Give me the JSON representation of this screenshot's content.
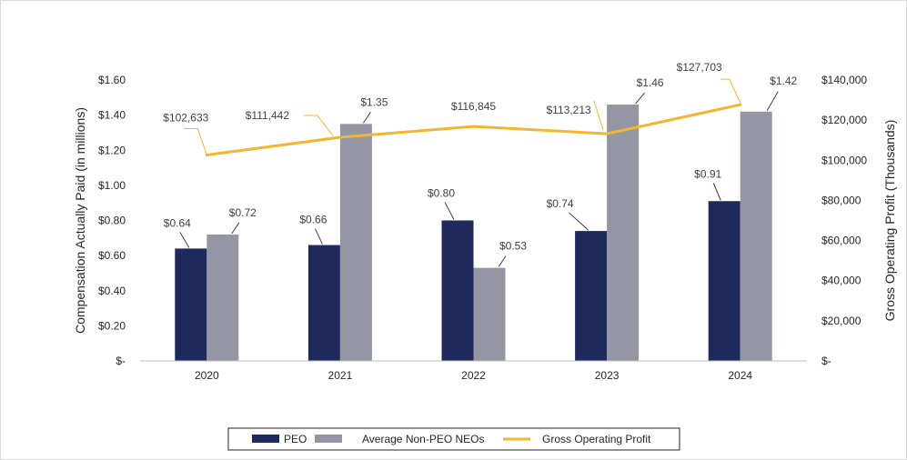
{
  "chart_data": {
    "type": "bar+line",
    "categories": [
      "2020",
      "2021",
      "2022",
      "2023",
      "2024"
    ],
    "series": [
      {
        "name": "PEO",
        "type": "bar",
        "axis": "left",
        "values": [
          0.64,
          0.66,
          0.8,
          0.74,
          0.91
        ],
        "labels": [
          "$0.64",
          "$0.66",
          "$0.80",
          "$0.74",
          "$0.91"
        ],
        "color": "#1f2a5c"
      },
      {
        "name": "Average Non-PEO NEOs",
        "type": "bar",
        "axis": "left",
        "values": [
          0.72,
          1.35,
          0.53,
          1.46,
          1.42
        ],
        "labels": [
          "$0.72",
          "$1.35",
          "$0.53",
          "$1.46",
          "$1.42"
        ],
        "color": "#9497a3"
      },
      {
        "name": "Gross Operating Profit",
        "type": "line",
        "axis": "right",
        "values": [
          102633,
          111442,
          116845,
          113213,
          127703
        ],
        "labels": [
          "$102,633",
          "$111,442",
          "$116,845",
          "$113,213",
          "$127,703"
        ],
        "color": "#f2b632"
      }
    ],
    "y_left": {
      "label": "Compensation Actually Paid (in millions)",
      "min": 0,
      "max": 1.6,
      "ticks": [
        0,
        0.2,
        0.4,
        0.6,
        0.8,
        1.0,
        1.2,
        1.4,
        1.6
      ],
      "tick_labels": [
        "$-",
        "$0.20",
        "$0.40",
        "$0.60",
        "$0.80",
        "$1.00",
        "$1.20",
        "$1.40",
        "$1.60"
      ]
    },
    "y_right": {
      "label": "Gross Operating Profit (Thousands)",
      "min": 0,
      "max": 140000,
      "ticks": [
        0,
        20000,
        40000,
        60000,
        80000,
        100000,
        120000,
        140000
      ],
      "tick_labels": [
        "$-",
        "$20,000",
        "$40,000",
        "$60,000",
        "$80,000",
        "$100,000",
        "$120,000",
        "$140,000"
      ]
    },
    "legend": {
      "position": "bottom",
      "entries": [
        "PEO",
        "Average Non-PEO NEOs",
        "Gross Operating Profit"
      ]
    }
  },
  "colors": {
    "axis_line": "#bfbfbf",
    "leader": "#404040"
  }
}
